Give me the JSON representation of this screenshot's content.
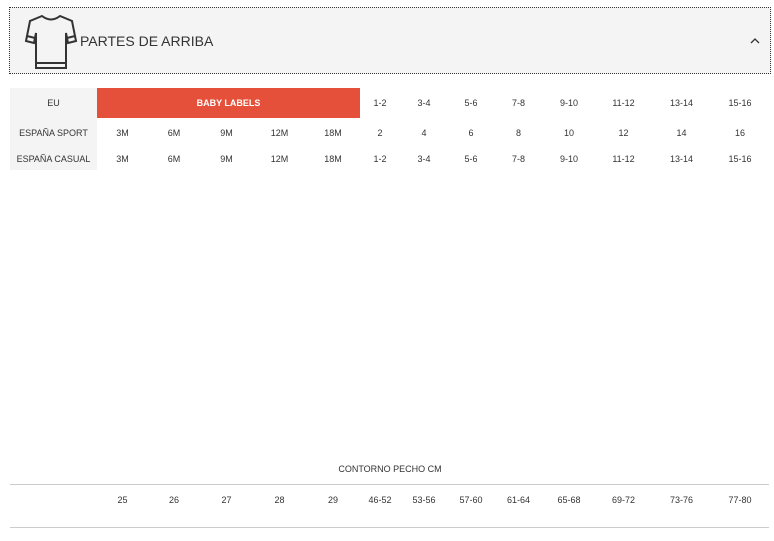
{
  "accordion": {
    "title": "PARTES DE ARRIBA",
    "icon": "tshirt-icon",
    "toggle_icon": "chevron-up-icon"
  },
  "colors": {
    "accent": "#e5503a",
    "label_bg": "#f4f4f4"
  },
  "size_table": {
    "eu": {
      "label": "EU",
      "baby": "BABY LABELS",
      "values": [
        "1-2",
        "3-4",
        "5-6",
        "7-8",
        "9-10",
        "11-12",
        "13-14",
        "15-16"
      ]
    },
    "sport": {
      "label": "ESPAÑA SPORT",
      "values": [
        "3M",
        "6M",
        "9M",
        "12M",
        "18M",
        "2",
        "4",
        "6",
        "8",
        "10",
        "12",
        "14",
        "16"
      ]
    },
    "casual": {
      "label": "ESPAÑA CASUAL",
      "values": [
        "3M",
        "6M",
        "9M",
        "12M",
        "18M",
        "1-2",
        "3-4",
        "5-6",
        "7-8",
        "9-10",
        "11-12",
        "13-14",
        "15-16"
      ]
    }
  },
  "chest": {
    "title": "CONTORNO PECHO CM",
    "values": [
      "25",
      "26",
      "27",
      "28",
      "29",
      "46-52",
      "53-56",
      "57-60",
      "61-64",
      "65-68",
      "69-72",
      "73-76",
      "77-80"
    ]
  }
}
